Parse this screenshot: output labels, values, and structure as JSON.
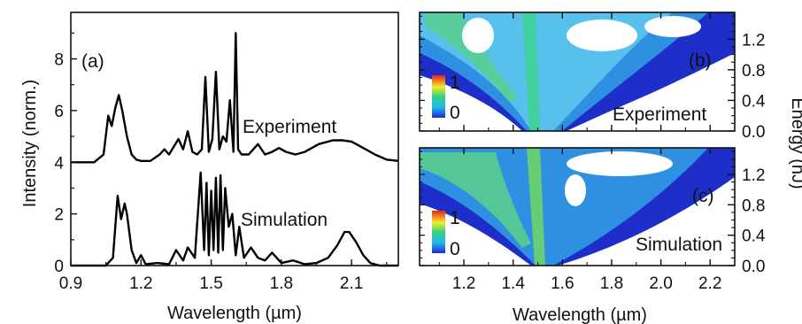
{
  "figure": {
    "y_label_left": "Intensity (norm.)",
    "y_label_right": "Energy (nJ)",
    "x_label": "Wavelength (µm)"
  },
  "chart_data": [
    {
      "type": "line",
      "panel_label": "(a)",
      "xlabel": "Wavelength (µm)",
      "ylabel": "Intensity (norm.)",
      "xlim": [
        0.9,
        2.3
      ],
      "ylim": [
        0,
        9.8
      ],
      "x_ticks": [
        "0.9",
        "1.2",
        "1.5",
        "1.8",
        "2.1"
      ],
      "y_ticks": [
        "0",
        "2",
        "4",
        "6",
        "8"
      ],
      "grid": false,
      "series": [
        {
          "name": "Experiment",
          "offset": 4,
          "x": [
            0.9,
            1.0,
            1.04,
            1.06,
            1.075,
            1.09,
            1.105,
            1.12,
            1.14,
            1.16,
            1.18,
            1.2,
            1.24,
            1.28,
            1.3,
            1.32,
            1.34,
            1.36,
            1.38,
            1.4,
            1.42,
            1.44,
            1.46,
            1.475,
            1.49,
            1.505,
            1.52,
            1.535,
            1.55,
            1.565,
            1.58,
            1.595,
            1.605,
            1.615,
            1.63,
            1.66,
            1.7,
            1.73,
            1.76,
            1.79,
            1.82,
            1.86,
            1.9,
            1.96,
            2.02,
            2.06,
            2.1,
            2.15,
            2.2,
            2.25,
            2.3
          ],
          "y": [
            4.0,
            4.0,
            4.3,
            5.8,
            5.4,
            6.1,
            6.6,
            6.0,
            5.0,
            4.3,
            4.1,
            4.05,
            4.05,
            4.3,
            4.5,
            4.3,
            4.6,
            4.9,
            4.5,
            5.2,
            4.4,
            4.3,
            4.5,
            7.3,
            4.4,
            4.9,
            7.5,
            4.5,
            5.0,
            4.8,
            6.4,
            4.4,
            9.0,
            4.5,
            4.3,
            4.3,
            4.7,
            4.3,
            4.4,
            4.55,
            4.4,
            4.3,
            4.4,
            4.7,
            4.85,
            4.85,
            4.8,
            4.55,
            4.3,
            4.1,
            4.05
          ]
        },
        {
          "name": "Simulation",
          "offset": 0,
          "x": [
            0.9,
            1.05,
            1.08,
            1.1,
            1.115,
            1.13,
            1.14,
            1.16,
            1.18,
            1.2,
            1.22,
            1.27,
            1.32,
            1.35,
            1.38,
            1.4,
            1.43,
            1.455,
            1.47,
            1.48,
            1.49,
            1.5,
            1.51,
            1.52,
            1.53,
            1.54,
            1.55,
            1.56,
            1.575,
            1.59,
            1.605,
            1.62,
            1.64,
            1.67,
            1.7,
            1.73,
            1.76,
            1.8,
            1.85,
            1.9,
            1.95,
            2.0,
            2.04,
            2.07,
            2.09,
            2.12,
            2.15,
            2.18,
            2.22,
            2.3
          ],
          "y": [
            0.0,
            0.0,
            0.3,
            2.7,
            1.8,
            2.4,
            2.0,
            0.6,
            0.1,
            0.4,
            0.05,
            0.1,
            0.05,
            0.6,
            0.2,
            0.7,
            0.3,
            3.6,
            0.6,
            3.2,
            0.4,
            2.9,
            0.6,
            3.4,
            0.5,
            3.5,
            0.6,
            3.0,
            1.5,
            2.0,
            0.4,
            1.5,
            0.3,
            0.7,
            0.3,
            0.2,
            0.5,
            0.1,
            0.2,
            0.05,
            0.1,
            0.3,
            0.8,
            1.3,
            1.3,
            0.9,
            0.4,
            0.1,
            0.0,
            0.0
          ]
        }
      ]
    },
    {
      "type": "heatmap",
      "panel_label": "(b)",
      "annotation": "Experiment",
      "xlim": [
        1.02,
        2.3
      ],
      "ylim": [
        0.0,
        1.55
      ],
      "x_ticks": [
        "1.2",
        "1.4",
        "1.6",
        "1.8",
        "2.0",
        "2.2"
      ],
      "y_ticks": [
        "0.0",
        "0.4",
        "0.8",
        "1.2"
      ],
      "colorbar": {
        "min_label": "0",
        "max_label": "1"
      }
    },
    {
      "type": "heatmap",
      "panel_label": "(c)",
      "annotation": "Simulation",
      "xlabel": "Wavelength (µm)",
      "ylabel": "Energy (nJ)",
      "xlim": [
        1.02,
        2.3
      ],
      "ylim": [
        0.0,
        1.55
      ],
      "x_ticks": [
        "1.2",
        "1.4",
        "1.6",
        "1.8",
        "2.0",
        "2.2"
      ],
      "y_ticks": [
        "0.0",
        "0.4",
        "0.8",
        "1.2"
      ],
      "colorbar": {
        "min_label": "0",
        "max_label": "1"
      }
    }
  ]
}
